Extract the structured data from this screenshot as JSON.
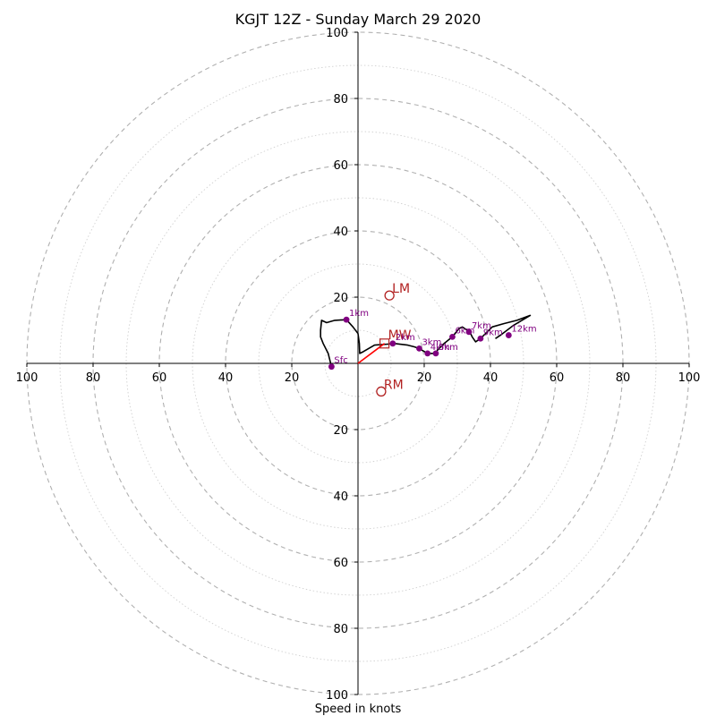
{
  "chart_data": {
    "type": "hodograph",
    "title": "KGJT 12Z - Sunday March 29 2020",
    "xlabel": "Speed in knots",
    "max_speed": 100,
    "ring_step": 10,
    "labeled_rings": [
      20,
      40,
      60,
      80,
      100
    ],
    "axis_tick_labels": [
      "100",
      "80",
      "60",
      "40",
      "20",
      "20",
      "40",
      "60",
      "80",
      "100"
    ],
    "wind_profile": [
      [
        -8,
        -1
      ],
      [
        -9,
        3
      ],
      [
        -10.5,
        6
      ],
      [
        -11.3,
        8
      ],
      [
        -11.3,
        10
      ],
      [
        -11,
        13
      ],
      [
        -9.5,
        12.3
      ],
      [
        -7,
        13
      ],
      [
        -3.5,
        13.2
      ],
      [
        -1.5,
        11
      ],
      [
        0,
        9
      ],
      [
        0.4,
        6
      ],
      [
        0.5,
        3
      ],
      [
        1.5,
        3.5
      ],
      [
        5,
        5.5
      ],
      [
        9,
        5.8
      ],
      [
        11,
        6
      ],
      [
        15,
        5.5
      ],
      [
        17,
        5
      ],
      [
        18.5,
        4.5
      ],
      [
        21,
        3
      ],
      [
        23.5,
        3
      ],
      [
        24,
        4
      ],
      [
        26,
        6
      ],
      [
        28.5,
        8
      ],
      [
        30.5,
        10.5
      ],
      [
        31.5,
        11
      ],
      [
        33,
        10
      ],
      [
        34,
        9
      ],
      [
        34.5,
        8
      ],
      [
        35.5,
        6.5
      ],
      [
        37,
        7.5
      ],
      [
        38,
        8.5
      ],
      [
        39,
        9.5
      ],
      [
        40.5,
        11
      ],
      [
        44,
        12
      ],
      [
        48,
        13
      ],
      [
        52,
        14.5
      ],
      [
        47,
        11.5
      ],
      [
        43,
        8.5
      ],
      [
        41.5,
        7.5
      ]
    ],
    "height_markers": [
      {
        "label": "Sfc",
        "u": -8,
        "v": -1
      },
      {
        "label": "1km",
        "u": -3.5,
        "v": 13.2
      },
      {
        "label": "2km",
        "u": 10.5,
        "v": 6
      },
      {
        "label": "3km",
        "u": 18.5,
        "v": 4.5
      },
      {
        "label": "4km",
        "u": 21,
        "v": 3
      },
      {
        "label": "5km",
        "u": 23.5,
        "v": 3
      },
      {
        "label": "6km",
        "u": 28.5,
        "v": 8
      },
      {
        "label": "7km",
        "u": 33.5,
        "v": 9.5
      },
      {
        "label": "9km",
        "u": 37,
        "v": 7.5
      },
      {
        "label": "12km",
        "u": 45.5,
        "v": 8.5
      }
    ],
    "storm_motion": [
      {
        "label": "LM",
        "u": 9.5,
        "v": 20.5
      },
      {
        "label": "RM",
        "u": 7,
        "v": -8.5
      }
    ],
    "mean_wind": {
      "label": "MW",
      "u": 8,
      "v": 6
    },
    "colors": {
      "profile": "#000000",
      "markers": "#800080",
      "storm_motion": "#b22222",
      "mean_wind_vector": "#ff0000",
      "rings": "#b0b0b0"
    }
  }
}
